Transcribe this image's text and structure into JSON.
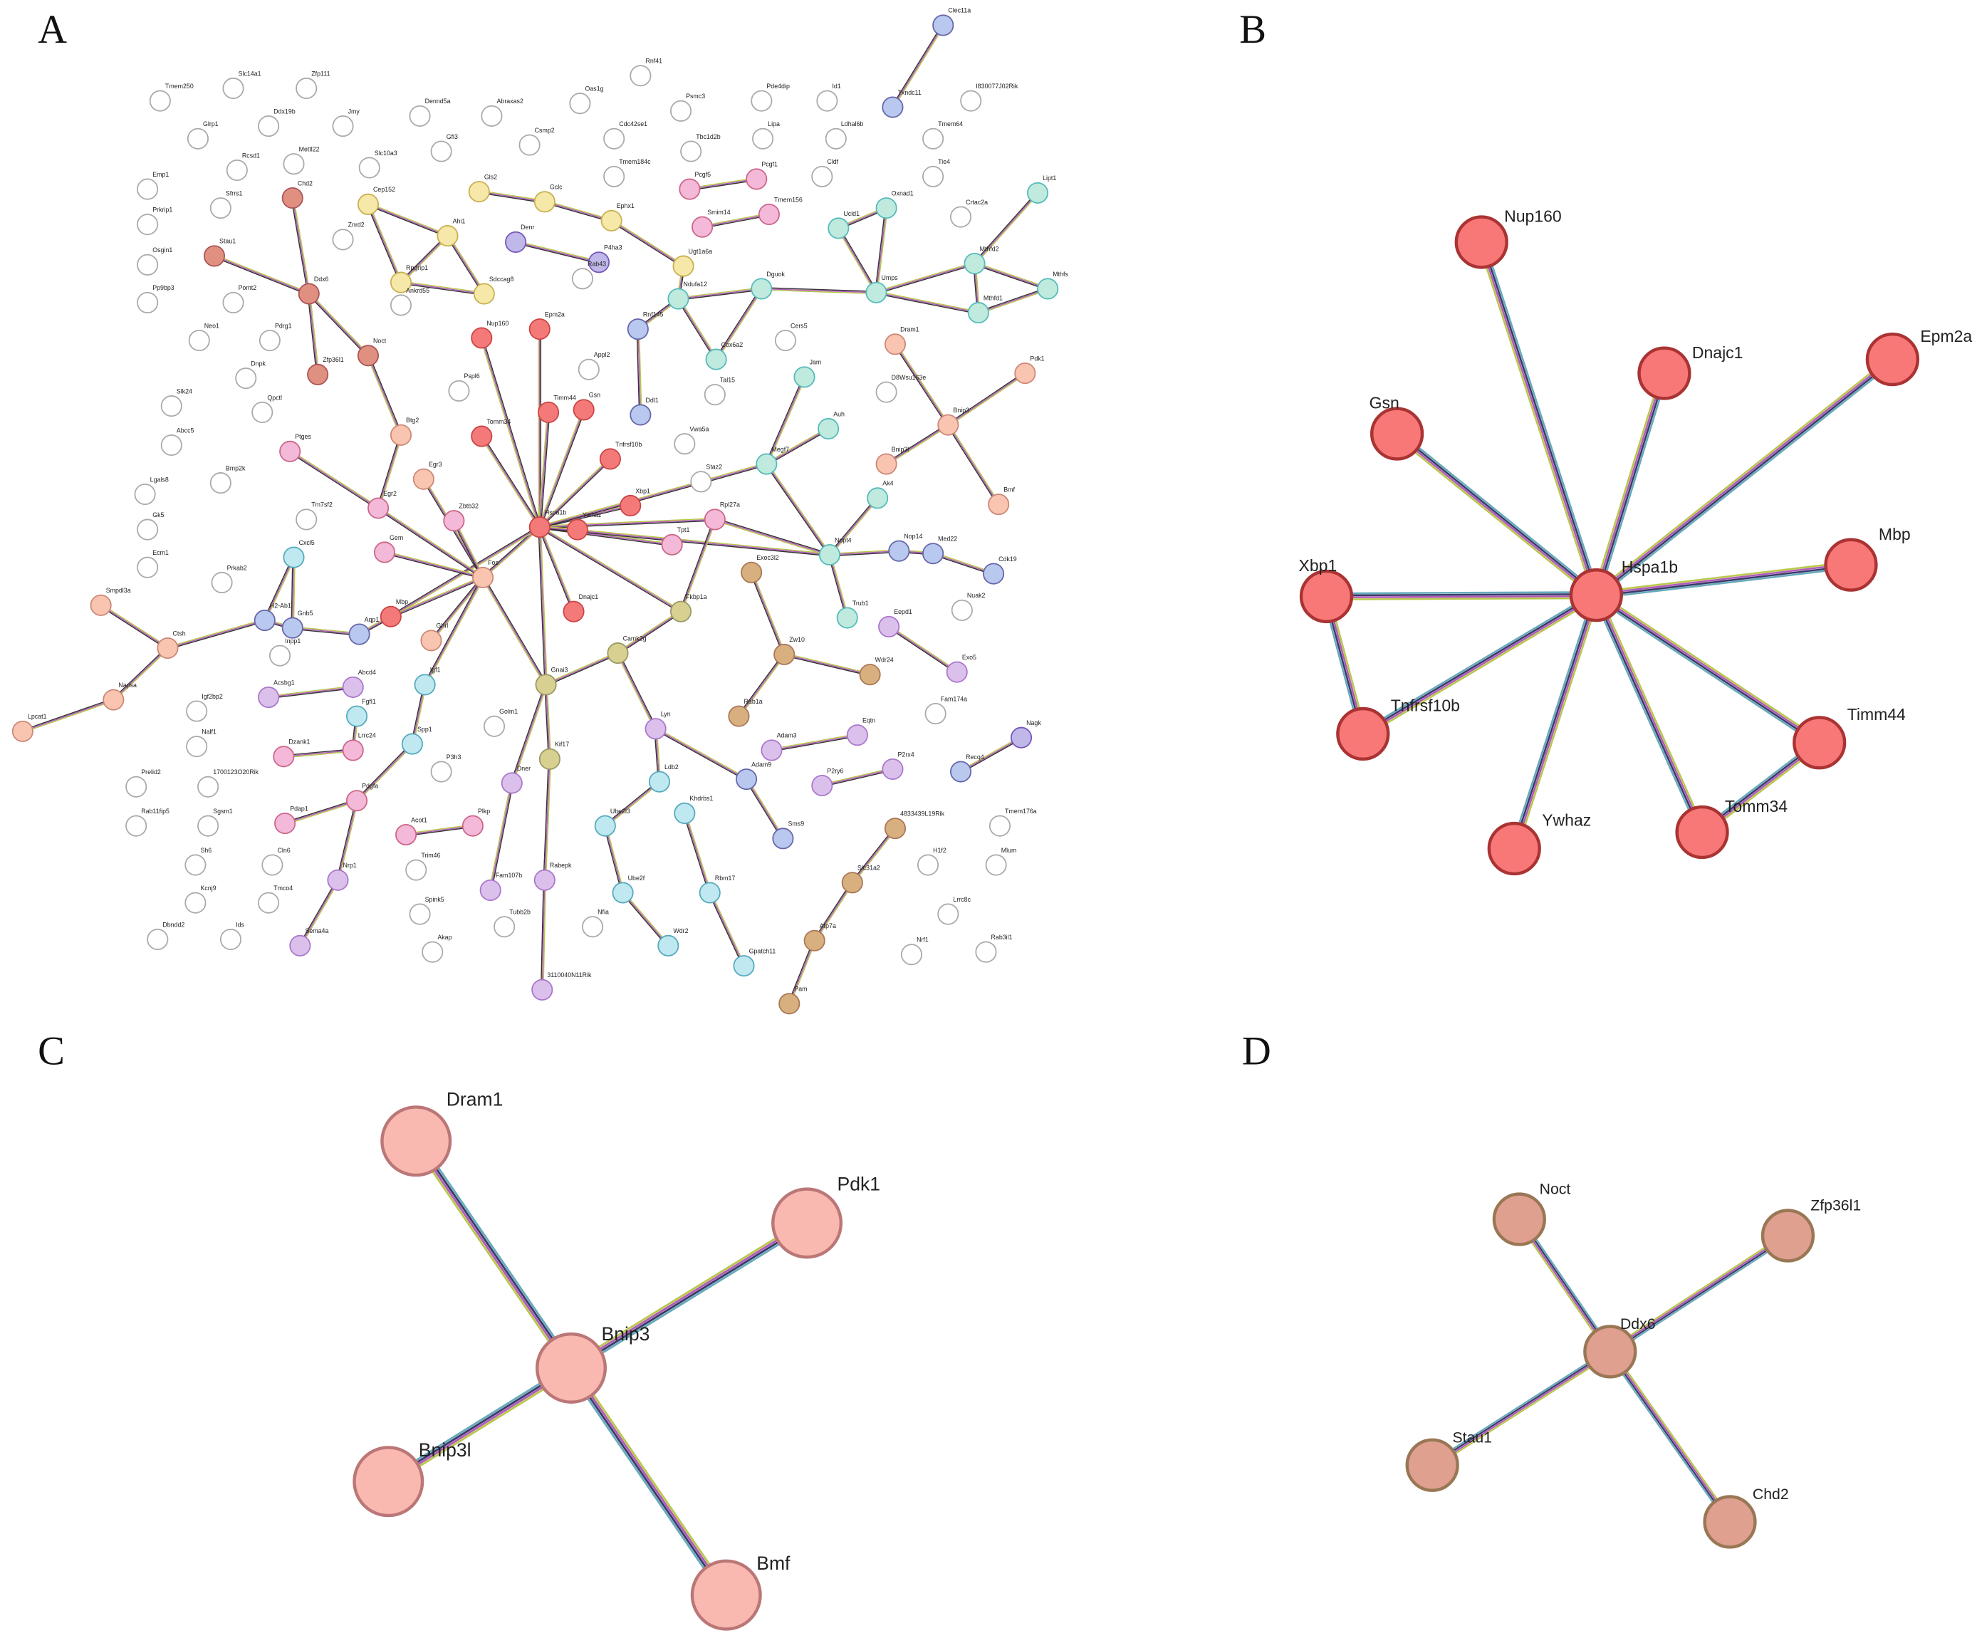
{
  "panels": [
    {
      "letter": "A",
      "nodes": [
        "Tmem250",
        "Slc14a1",
        "Zfp111",
        "Glrp1",
        "Ddx19b",
        "Jmy",
        "Emp1",
        "Rcsd1",
        "Mettl22",
        "Slc10a3",
        "Prkrip1",
        "Sfrrs1",
        "Osgin1",
        "Pp9bp3",
        "Pomt2",
        "Neo1",
        "Pdrg1",
        "Dnpk",
        "Slk24",
        "Abcc5",
        "Qpctl",
        "Bmp2k",
        "Lgals8",
        "Gk5",
        "Tm7sf2",
        "Ecm1",
        "Prkab2",
        "Igf2bp2",
        "Nalf1",
        "Prelid2",
        "1700123O20Rik",
        "Rab11fip5",
        "Sgsm1",
        "Sh6",
        "Cln6",
        "Kcnj9",
        "Tmco4",
        "Dbndd2",
        "Ids",
        "Chd2",
        "Stau1",
        "Ddx6",
        "Zfp36l1",
        "Noct",
        "Cep152",
        "Znrd2",
        "Ahi1",
        "Rpgrip1",
        "Ankrd55",
        "Sdccag8",
        "Gls2",
        "Gclc",
        "Ephx1",
        "Ugt1a6a",
        "Denr",
        "P4ha3",
        "Rab43",
        "Dennd5a",
        "Abraxas2",
        "Oas1g",
        "Gfi3",
        "Csmp2",
        "Cdc42se1",
        "Rnf41",
        "Psmc3",
        "Tmem184c",
        "Pde4dip",
        "Id1",
        "Tbc1d2b",
        "Lipa",
        "Pcgf5",
        "Pcgf1",
        "Smim14",
        "Tmem156",
        "Ldhal6b",
        "Cldf",
        "Clec11a",
        "Txndc11",
        "I830077J02Rik",
        "Tmem64",
        "Tie4",
        "Ucld1",
        "Oxnad1",
        "Crtac2a",
        "Umps",
        "Lipt1",
        "Mthfd2",
        "Mthfs",
        "Mthfd1",
        "Ndufa12",
        "Dguok",
        "Rnf145",
        "Cox6a2",
        "Cers5",
        "Dram1",
        "Jam",
        "Appl2",
        "Tal15",
        "Pdk1",
        "Ddl1",
        "Vwa5a",
        "Auh",
        "D8Wsu163e",
        "Bnip3",
        "Bnip3l",
        "Megf7",
        "Staz2",
        "Bmf",
        "Ak4",
        "Nup160",
        "Epm2a",
        "Pspl6",
        "Timm44",
        "Gsn",
        "Tomm34",
        "Tnfrsf10b",
        "Xbp1",
        "Hspa1b",
        "Ywhaz",
        "Dnajc1",
        "Rpl27a",
        "Tpt1",
        "Mbp",
        "Btg2",
        "Egr3",
        "Ptges",
        "Egr2",
        "Zbtb32",
        "Gem",
        "Fos",
        "Cxcl5",
        "H2-Ab1",
        "Gnb5",
        "Aqp1",
        "Ghrl",
        "Igf1",
        "Spp1",
        "Pdgfa",
        "Pdap1",
        "Nrp1",
        "Sema4a",
        "Acsbg1",
        "Abcd4",
        "Fgfl1",
        "Lrrc24",
        "Dzank1",
        "Inpp1",
        "Smpdl3a",
        "Ctsh",
        "Napsa",
        "Lpcat1",
        "Gnai3",
        "Camk2g",
        "Fkbp1a",
        "Kif17",
        "Exoc3l2",
        "Zw10",
        "Rab1a",
        "Wdr24",
        "Golm1",
        "Dner",
        "P3h3",
        "Acot1",
        "Plkp",
        "Trim46",
        "Fam107b",
        "Rabepk",
        "Spink5",
        "Tubb2b",
        "Akap",
        "3110040N11Rik",
        "Nfia",
        "Lyn",
        "Ldb2",
        "Ube2l3",
        "Ube2f",
        "Wdr2",
        "Khdrbs1",
        "Rbm17",
        "Gpatch11",
        "Adam3",
        "Adam9",
        "Eqtn",
        "P2ry6",
        "P2rx4",
        "Sms9",
        "4833439L19Rik",
        "Slc31a2",
        "Atp7a",
        "Pam",
        "Nopt4",
        "Nop14",
        "Med22",
        "Cdk19",
        "Trub1",
        "Eepd1",
        "Nuak2",
        "Exo5",
        "Fam174a",
        "Nagk",
        "Recq4",
        "Tmem176a",
        "H1f2",
        "Mlum",
        "Lrrc8c",
        "Nrf1",
        "Rab3il1"
      ]
    },
    {
      "letter": "B",
      "nodes": [
        "Hspa1b",
        "Nup160",
        "Dnajc1",
        "Epm2a",
        "Gsn",
        "Mbp",
        "Xbp1",
        "Tnfrsf10b",
        "Timm44",
        "Ywhaz",
        "Tomm34"
      ]
    },
    {
      "letter": "C",
      "nodes": [
        "Bnip3",
        "Dram1",
        "Pdk1",
        "Bnip3l",
        "Bmf"
      ]
    },
    {
      "letter": "D",
      "nodes": [
        "Ddx6",
        "Noct",
        "Zfp36l1",
        "Stau1",
        "Chd2"
      ]
    }
  ]
}
